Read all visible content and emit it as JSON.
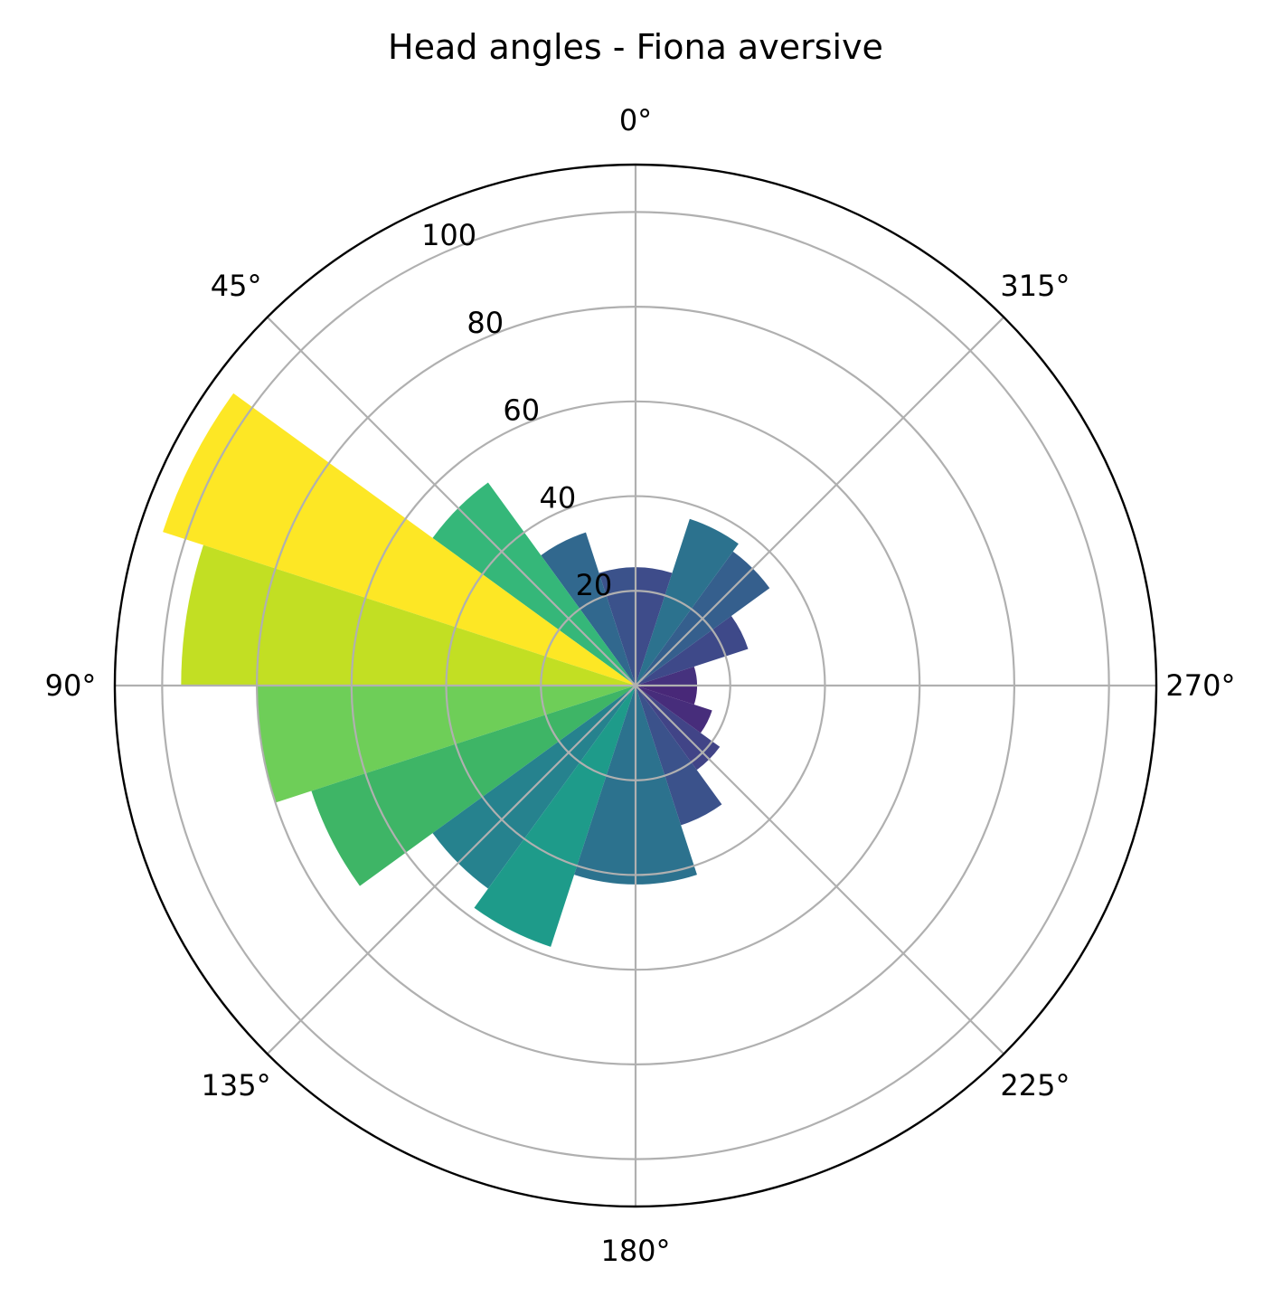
{
  "chart_data": {
    "type": "bar",
    "subtype": "polar-rose",
    "title": "Head angles - Fiona aversive",
    "theta_zero_location": "top",
    "theta_direction": "counterclockwise",
    "rlim": [
      0,
      110
    ],
    "r_ticks": [
      20,
      40,
      60,
      80,
      100
    ],
    "r_tick_labels": [
      "20",
      "40",
      "60",
      "80",
      "100"
    ],
    "theta_ticks": [
      0,
      45,
      90,
      135,
      180,
      225,
      270,
      315
    ],
    "theta_tick_labels": [
      "0°",
      "45°",
      "90°",
      "135°",
      "180°",
      "225°",
      "270°",
      "315°"
    ],
    "grid": true,
    "colormap": "viridis",
    "bin_width_deg": 18,
    "bins": [
      {
        "center_deg": 9,
        "value": 25,
        "color": "#3b528b"
      },
      {
        "center_deg": 27,
        "value": 34,
        "color": "#31688e"
      },
      {
        "center_deg": 45,
        "value": 53,
        "color": "#35b779"
      },
      {
        "center_deg": 63,
        "value": 105,
        "color": "#fde725"
      },
      {
        "center_deg": 81,
        "value": 96,
        "color": "#c2df23"
      },
      {
        "center_deg": 99,
        "value": 80,
        "color": "#6ece58"
      },
      {
        "center_deg": 117,
        "value": 72,
        "color": "#3eb566"
      },
      {
        "center_deg": 135,
        "value": 53,
        "color": "#26828e"
      },
      {
        "center_deg": 153,
        "value": 58,
        "color": "#1e9b8a"
      },
      {
        "center_deg": 171,
        "value": 42,
        "color": "#2c728e"
      },
      {
        "center_deg": 189,
        "value": 42,
        "color": "#2c728e"
      },
      {
        "center_deg": 207,
        "value": 31,
        "color": "#3b528b"
      },
      {
        "center_deg": 225,
        "value": 22,
        "color": "#414487"
      },
      {
        "center_deg": 243,
        "value": 17,
        "color": "#472d7b"
      },
      {
        "center_deg": 261,
        "value": 13,
        "color": "#482878"
      },
      {
        "center_deg": 279,
        "value": 13,
        "color": "#46327e"
      },
      {
        "center_deg": 297,
        "value": 25,
        "color": "#3e4989"
      },
      {
        "center_deg": 315,
        "value": 35,
        "color": "#355f8d"
      },
      {
        "center_deg": 333,
        "value": 37,
        "color": "#2c728e"
      },
      {
        "center_deg": 351,
        "value": 25,
        "color": "#3e4c8a"
      }
    ]
  }
}
